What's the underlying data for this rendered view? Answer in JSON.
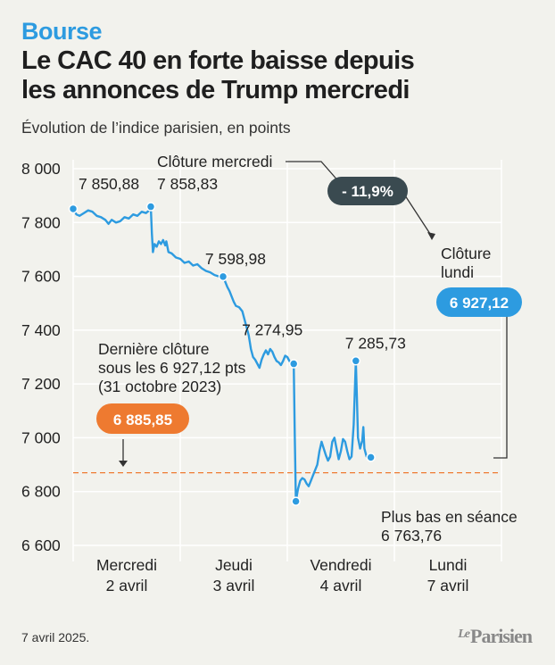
{
  "header": {
    "kicker": "Bourse",
    "title_line1": "Le CAC 40 en forte baisse depuis",
    "title_line2": "les annonces de Trump mercredi",
    "subtitle": "Évolution de l’indice parisien, en points"
  },
  "footer": {
    "date": "7 avril 2025.",
    "logo_le": "Le",
    "logo_name": "Parisien"
  },
  "colors": {
    "line": "#2d9be0",
    "orange": "#ee7a30",
    "dark_badge": "#3a4a50",
    "grid": "#ffffff",
    "background": "#f2f2ed"
  },
  "chart_data": {
    "type": "line",
    "title": "Le CAC 40 en forte baisse depuis les annonces de Trump mercredi",
    "ylabel": "",
    "ylim": [
      6600,
      8000
    ],
    "y_ticks": [
      8000,
      7800,
      7600,
      7400,
      7200,
      7000,
      6800,
      6600
    ],
    "y_tick_labels": [
      "8 000",
      "7 800",
      "7 600",
      "7 400",
      "7 200",
      "7 000",
      "6 800",
      "6 600"
    ],
    "days": [
      {
        "line1": "Mercredi",
        "line2": "2 avril"
      },
      {
        "line1": "Jeudi",
        "line2": "3 avril"
      },
      {
        "line1": "Vendredi",
        "line2": "4 avril"
      },
      {
        "line1": "Lundi",
        "line2": "7 avril"
      }
    ],
    "grid": true,
    "series": [
      {
        "points": [
          [
            0.0,
            7850.88
          ],
          [
            0.03,
            7830
          ],
          [
            0.06,
            7825
          ],
          [
            0.1,
            7835
          ],
          [
            0.14,
            7845
          ],
          [
            0.18,
            7840
          ],
          [
            0.22,
            7825
          ],
          [
            0.26,
            7820
          ],
          [
            0.3,
            7810
          ],
          [
            0.33,
            7795
          ],
          [
            0.36,
            7810
          ],
          [
            0.4,
            7800
          ],
          [
            0.44,
            7805
          ],
          [
            0.48,
            7820
          ],
          [
            0.52,
            7815
          ],
          [
            0.56,
            7830
          ],
          [
            0.6,
            7825
          ],
          [
            0.64,
            7840
          ],
          [
            0.68,
            7835
          ],
          [
            0.71,
            7845
          ],
          [
            0.725,
            7858.83
          ],
          [
            0.735,
            7760
          ],
          [
            0.745,
            7690
          ],
          [
            0.76,
            7720
          ],
          [
            0.78,
            7710
          ],
          [
            0.8,
            7730
          ],
          [
            0.82,
            7720
          ],
          [
            0.84,
            7735
          ],
          [
            0.86,
            7715
          ],
          [
            0.87,
            7730
          ],
          [
            0.89,
            7690
          ],
          [
            0.92,
            7685
          ],
          [
            0.96,
            7670
          ],
          [
            1.0,
            7665
          ],
          [
            1.04,
            7650
          ],
          [
            1.08,
            7655
          ],
          [
            1.12,
            7640
          ],
          [
            1.16,
            7645
          ],
          [
            1.2,
            7630
          ],
          [
            1.24,
            7620
          ],
          [
            1.28,
            7615
          ],
          [
            1.32,
            7605
          ],
          [
            1.36,
            7600
          ],
          [
            1.4,
            7598.98
          ],
          [
            1.42,
            7580
          ],
          [
            1.44,
            7560
          ],
          [
            1.46,
            7545
          ],
          [
            1.48,
            7525
          ],
          [
            1.5,
            7505
          ],
          [
            1.52,
            7490
          ],
          [
            1.55,
            7485
          ],
          [
            1.58,
            7470
          ],
          [
            1.6,
            7440
          ],
          [
            1.62,
            7410
          ],
          [
            1.64,
            7380
          ],
          [
            1.66,
            7330
          ],
          [
            1.68,
            7300
          ],
          [
            1.7,
            7290
          ],
          [
            1.72,
            7275
          ],
          [
            1.74,
            7260
          ],
          [
            1.76,
            7290
          ],
          [
            1.78,
            7310
          ],
          [
            1.8,
            7325
          ],
          [
            1.82,
            7310
          ],
          [
            1.84,
            7330
          ],
          [
            1.86,
            7320
          ],
          [
            1.88,
            7300
          ],
          [
            1.9,
            7285
          ],
          [
            1.92,
            7280
          ],
          [
            1.94,
            7270
          ],
          [
            1.96,
            7285
          ],
          [
            1.98,
            7305
          ],
          [
            2.0,
            7300
          ],
          [
            2.02,
            7285
          ],
          [
            2.04,
            7275
          ],
          [
            2.06,
            7274.95
          ],
          [
            2.07,
            7000
          ],
          [
            2.08,
            6763.76
          ],
          [
            2.1,
            6810
          ],
          [
            2.12,
            6840
          ],
          [
            2.14,
            6850
          ],
          [
            2.16,
            6845
          ],
          [
            2.18,
            6830
          ],
          [
            2.2,
            6820
          ],
          [
            2.22,
            6840
          ],
          [
            2.24,
            6860
          ],
          [
            2.26,
            6880
          ],
          [
            2.28,
            6900
          ],
          [
            2.3,
            6950
          ],
          [
            2.32,
            6985
          ],
          [
            2.34,
            6960
          ],
          [
            2.36,
            6935
          ],
          [
            2.38,
            6915
          ],
          [
            2.4,
            6930
          ],
          [
            2.42,
            6985
          ],
          [
            2.44,
            7000
          ],
          [
            2.46,
            6960
          ],
          [
            2.48,
            6920
          ],
          [
            2.5,
            6950
          ],
          [
            2.52,
            6995
          ],
          [
            2.54,
            6985
          ],
          [
            2.56,
            6950
          ],
          [
            2.58,
            6920
          ],
          [
            2.6,
            6930
          ],
          [
            2.62,
            7050
          ],
          [
            2.64,
            7285.73
          ],
          [
            2.65,
            7150
          ],
          [
            2.66,
            7000
          ],
          [
            2.68,
            6960
          ],
          [
            2.7,
            6990
          ],
          [
            2.71,
            7040
          ],
          [
            2.72,
            6960
          ],
          [
            2.74,
            6930
          ],
          [
            2.76,
            6925
          ],
          [
            2.78,
            6927.12
          ]
        ]
      }
    ],
    "point_labels": [
      {
        "x": 0.0,
        "y": 7850.88,
        "text": "7 850,88"
      },
      {
        "x": 0.725,
        "y": 7858.83,
        "text": "7 858,83"
      },
      {
        "x": 1.4,
        "y": 7598.98,
        "text": "7 598,98"
      },
      {
        "x": 2.06,
        "y": 7274.95,
        "text": "7 274,95"
      },
      {
        "x": 2.64,
        "y": 7285.73,
        "text": "7 285,73"
      },
      {
        "x": 2.08,
        "y": 6763.76,
        "text": "6 763,76"
      },
      {
        "x": 2.78,
        "y": 6927.12,
        "text": "6 927,12"
      }
    ],
    "annotations": {
      "close_wednesday": "Clôture mercredi",
      "change_badge": "- 11,9%",
      "close_monday_line1": "Clôture",
      "close_monday_line2": "lundi",
      "close_monday_value": "6 927,12",
      "last_close_line1": "Dernière clôture",
      "last_close_line2": "sous les 6 927,12 pts",
      "last_close_line3": "(31 octobre 2023)",
      "last_close_value": "6 885,85",
      "low_label": "Plus bas en séance",
      "low_value": "6 763,76"
    },
    "reference_line": {
      "y": 6870,
      "style": "dashed"
    }
  }
}
